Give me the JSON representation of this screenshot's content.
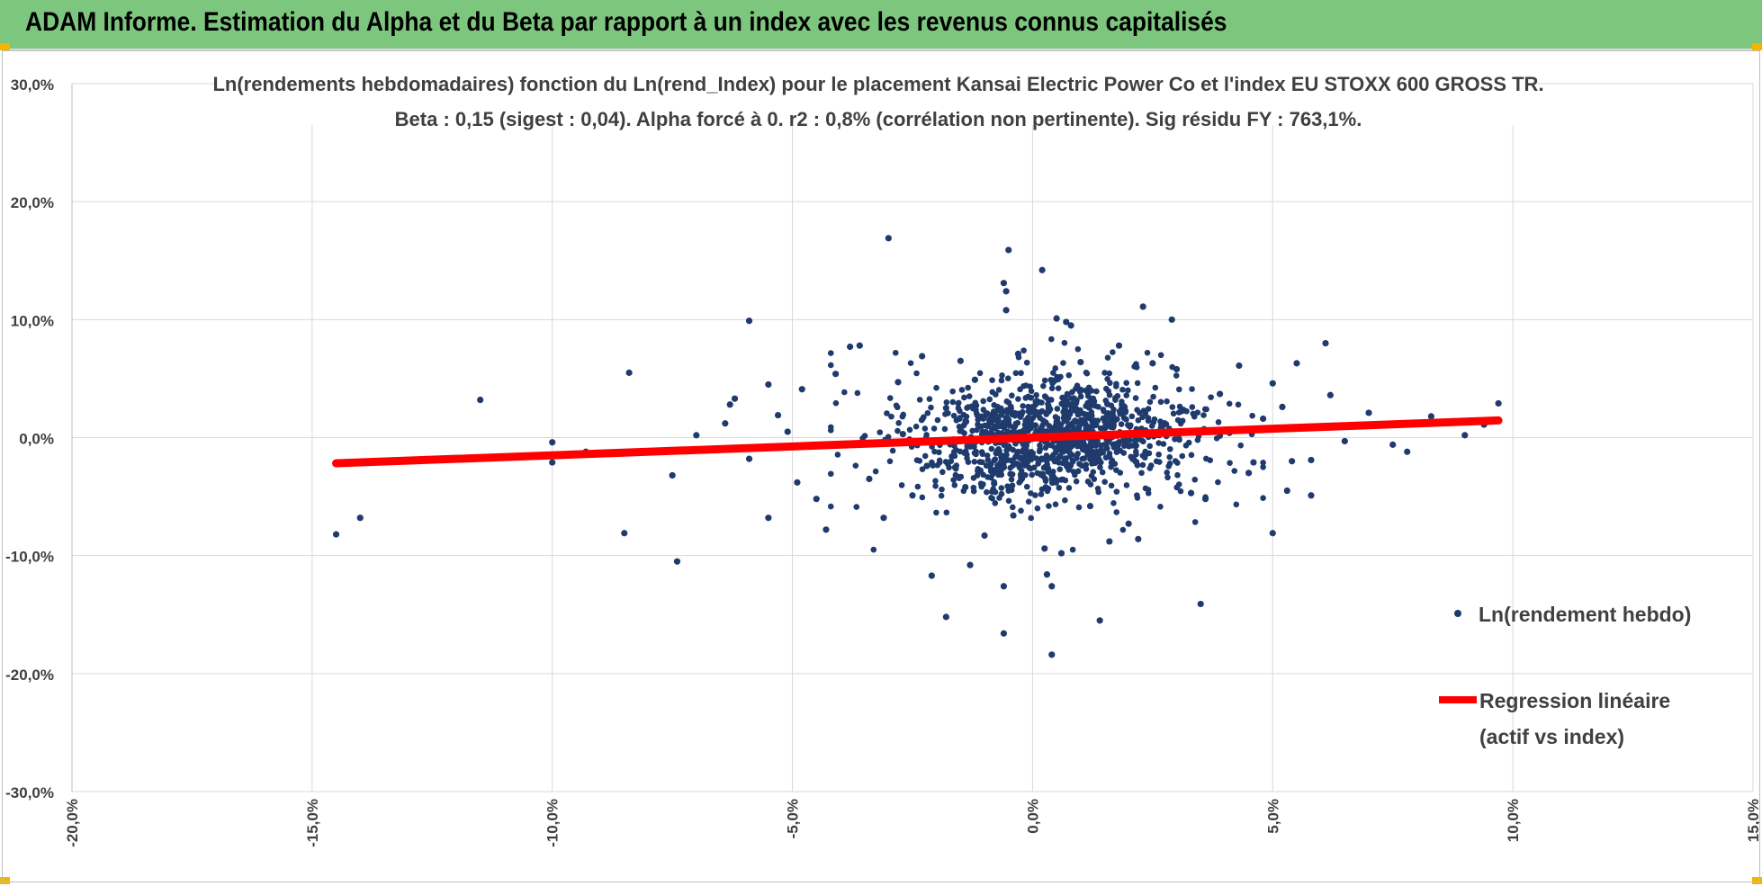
{
  "header": {
    "title": "ADAM Informe. Estimation du Alpha et du Beta par rapport à un index avec les revenus connus capitalisés",
    "bg_color": "#7dc67e",
    "corner_color": "#f2b600"
  },
  "chart_data": {
    "type": "scatter",
    "title_line1": "Ln(rendements hebdomadaires) fonction du Ln(rend_Index) pour le placement Kansai Electric Power Co  et l'index EU STOXX 600 GROSS TR.",
    "title_line2": "Beta : 0,15 (sigest : 0,04).  Alpha forcé à 0. r2 : 0,8% (corrélation non pertinente). Sig résidu FY : 763,1%.",
    "xlim": [
      -20,
      15
    ],
    "ylim": [
      -30,
      30
    ],
    "x_ticks": [
      -20,
      -15,
      -10,
      -5,
      0,
      5,
      10,
      15
    ],
    "y_ticks": [
      30,
      20,
      10,
      0,
      -10,
      -20,
      -30
    ],
    "x_tick_labels": [
      "-20,0%",
      "-15,0%",
      "-10,0%",
      "-5,0%",
      "0,0%",
      "5,0%",
      "10,0%",
      "15,0%"
    ],
    "y_tick_labels": [
      "30,0%",
      "20,0%",
      "10,0%",
      "0,0%",
      "-10,0%",
      "-20,0%",
      "-30,0%"
    ],
    "grid": "vertical-and-horizontal",
    "legend_position": "right",
    "legend": {
      "scatter_label": "Ln(rendement hebdo)",
      "line_label_1": "Regression linéaire",
      "line_label_2": "(actif vs index)"
    },
    "colors": {
      "points": "#1f3b6e",
      "regression": "#ff0000",
      "grid": "#d9d9d9"
    },
    "regression": {
      "beta": 0.15,
      "alpha": 0,
      "x_start": -14.5,
      "x_end": 9.7
    },
    "series": [
      {
        "name": "Ln(rendement hebdo)",
        "points": [
          [
            -14.5,
            -8.2
          ],
          [
            -14.0,
            -6.8
          ],
          [
            -11.5,
            3.2
          ],
          [
            -10.0,
            -0.4
          ],
          [
            -10.0,
            -2.1
          ],
          [
            -9.3,
            -1.2
          ],
          [
            -8.4,
            5.5
          ],
          [
            -8.5,
            -8.1
          ],
          [
            -7.4,
            -10.5
          ],
          [
            -7.5,
            -3.2
          ],
          [
            -7.0,
            0.2
          ],
          [
            -6.8,
            -1.1
          ],
          [
            -6.3,
            2.8
          ],
          [
            -6.2,
            3.3
          ],
          [
            -6.4,
            1.2
          ],
          [
            -5.9,
            9.9
          ],
          [
            -5.9,
            -1.8
          ],
          [
            -5.5,
            4.5
          ],
          [
            -5.5,
            -6.8
          ],
          [
            -5.3,
            1.9
          ],
          [
            -5.1,
            0.5
          ],
          [
            -4.9,
            -3.8
          ],
          [
            -4.8,
            4.1
          ],
          [
            -4.5,
            -5.2
          ],
          [
            -4.3,
            -7.8
          ],
          [
            -4.1,
            5.4
          ],
          [
            -3.8,
            7.7
          ],
          [
            -3.6,
            7.8
          ],
          [
            -3.4,
            -3.5
          ],
          [
            -3.1,
            -6.8
          ],
          [
            -3.0,
            16.9
          ],
          [
            -2.8,
            4.7
          ],
          [
            -2.7,
            0.3
          ],
          [
            -2.5,
            -4.9
          ],
          [
            -2.3,
            6.9
          ],
          [
            -2.2,
            -2.4
          ],
          [
            -2.1,
            -11.7
          ],
          [
            -1.8,
            2.5
          ],
          [
            -1.8,
            -15.2
          ],
          [
            -1.5,
            6.5
          ],
          [
            -1.4,
            -4.2
          ],
          [
            -1.3,
            -10.8
          ],
          [
            -1.2,
            4.9
          ],
          [
            -1.0,
            -8.3
          ],
          [
            -0.8,
            -3.9
          ],
          [
            -0.6,
            -12.6
          ],
          [
            -0.6,
            -16.6
          ],
          [
            -0.6,
            13.1
          ],
          [
            -0.55,
            12.4
          ],
          [
            -0.5,
            15.9
          ],
          [
            -0.55,
            10.8
          ],
          [
            -0.4,
            -6.6
          ],
          [
            -0.3,
            7.1
          ],
          [
            -0.2,
            -3.2
          ],
          [
            0.2,
            14.2
          ],
          [
            0.25,
            -9.4
          ],
          [
            0.3,
            -11.6
          ],
          [
            0.4,
            -12.6
          ],
          [
            0.4,
            -18.4
          ],
          [
            0.5,
            10.1
          ],
          [
            0.6,
            -9.8
          ],
          [
            0.7,
            9.8
          ],
          [
            0.8,
            9.5
          ],
          [
            1.0,
            6.4
          ],
          [
            1.2,
            -5.8
          ],
          [
            1.4,
            -15.5
          ],
          [
            1.6,
            -8.8
          ],
          [
            1.8,
            7.8
          ],
          [
            2.0,
            -7.3
          ],
          [
            2.2,
            -8.6
          ],
          [
            2.3,
            11.1
          ],
          [
            2.5,
            6.3
          ],
          [
            2.9,
            10.0
          ],
          [
            3.0,
            5.8
          ],
          [
            3.3,
            -4.7
          ],
          [
            3.5,
            -14.1
          ],
          [
            3.6,
            -5.2
          ],
          [
            3.9,
            3.7
          ],
          [
            4.1,
            0.4
          ],
          [
            4.3,
            6.1
          ],
          [
            4.5,
            -3.0
          ],
          [
            4.6,
            -2.1
          ],
          [
            4.8,
            1.6
          ],
          [
            5.0,
            4.6
          ],
          [
            5.0,
            -8.1
          ],
          [
            5.2,
            2.6
          ],
          [
            5.3,
            -4.5
          ],
          [
            5.4,
            -2.0
          ],
          [
            5.5,
            6.3
          ],
          [
            5.8,
            -4.9
          ],
          [
            5.8,
            -1.9
          ],
          [
            6.1,
            8.0
          ],
          [
            6.2,
            3.6
          ],
          [
            6.5,
            -0.3
          ],
          [
            7.0,
            2.1
          ],
          [
            7.5,
            -0.6
          ],
          [
            7.8,
            -1.2
          ],
          [
            8.3,
            1.8
          ],
          [
            9.0,
            0.2
          ],
          [
            9.7,
            2.9
          ],
          [
            9.4,
            1.1
          ]
        ],
        "core_cloud": {
          "count": 1150,
          "center_x": 0.4,
          "center_y": 0.1,
          "sd_x": 1.35,
          "sd_y": 2.5
        }
      }
    ]
  }
}
